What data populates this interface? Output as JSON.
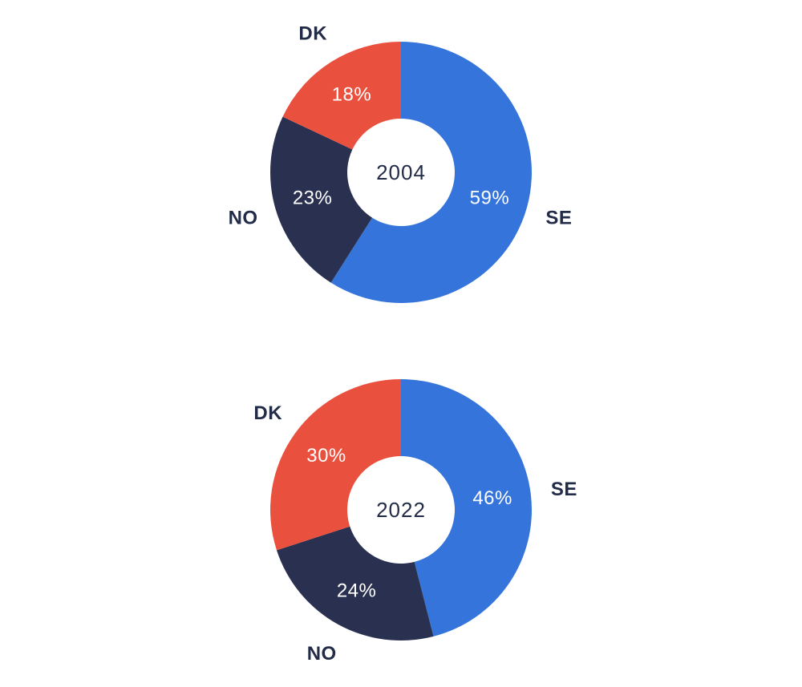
{
  "page": {
    "background": "#FFFFFF"
  },
  "style": {
    "slice_value_text_color": "#FFFFFF",
    "outer_label_text_color": "#222B47",
    "center_label_text_color": "#222B47"
  },
  "chart_data": [
    {
      "type": "pie",
      "variant": "donut",
      "center_label": "2004",
      "start_angle_deg": 0,
      "direction": "clockwise",
      "hole_ratio": 0.41,
      "legend_position": "outside-labels",
      "slices": [
        {
          "label": "SE",
          "value_pct": 59,
          "value_text": "59%",
          "color": "#3575DB"
        },
        {
          "label": "NO",
          "value_pct": 23,
          "value_text": "23%",
          "color": "#2A3150"
        },
        {
          "label": "DK",
          "value_pct": 18,
          "value_text": "18%",
          "color": "#E9513E"
        }
      ]
    },
    {
      "type": "pie",
      "variant": "donut",
      "center_label": "2022",
      "start_angle_deg": 0,
      "direction": "clockwise",
      "hole_ratio": 0.41,
      "legend_position": "outside-labels",
      "slices": [
        {
          "label": "SE",
          "value_pct": 46,
          "value_text": "46%",
          "color": "#3575DB"
        },
        {
          "label": "NO",
          "value_pct": 24,
          "value_text": "24%",
          "color": "#2A3150"
        },
        {
          "label": "DK",
          "value_pct": 30,
          "value_text": "30%",
          "color": "#E9513E"
        }
      ]
    }
  ]
}
